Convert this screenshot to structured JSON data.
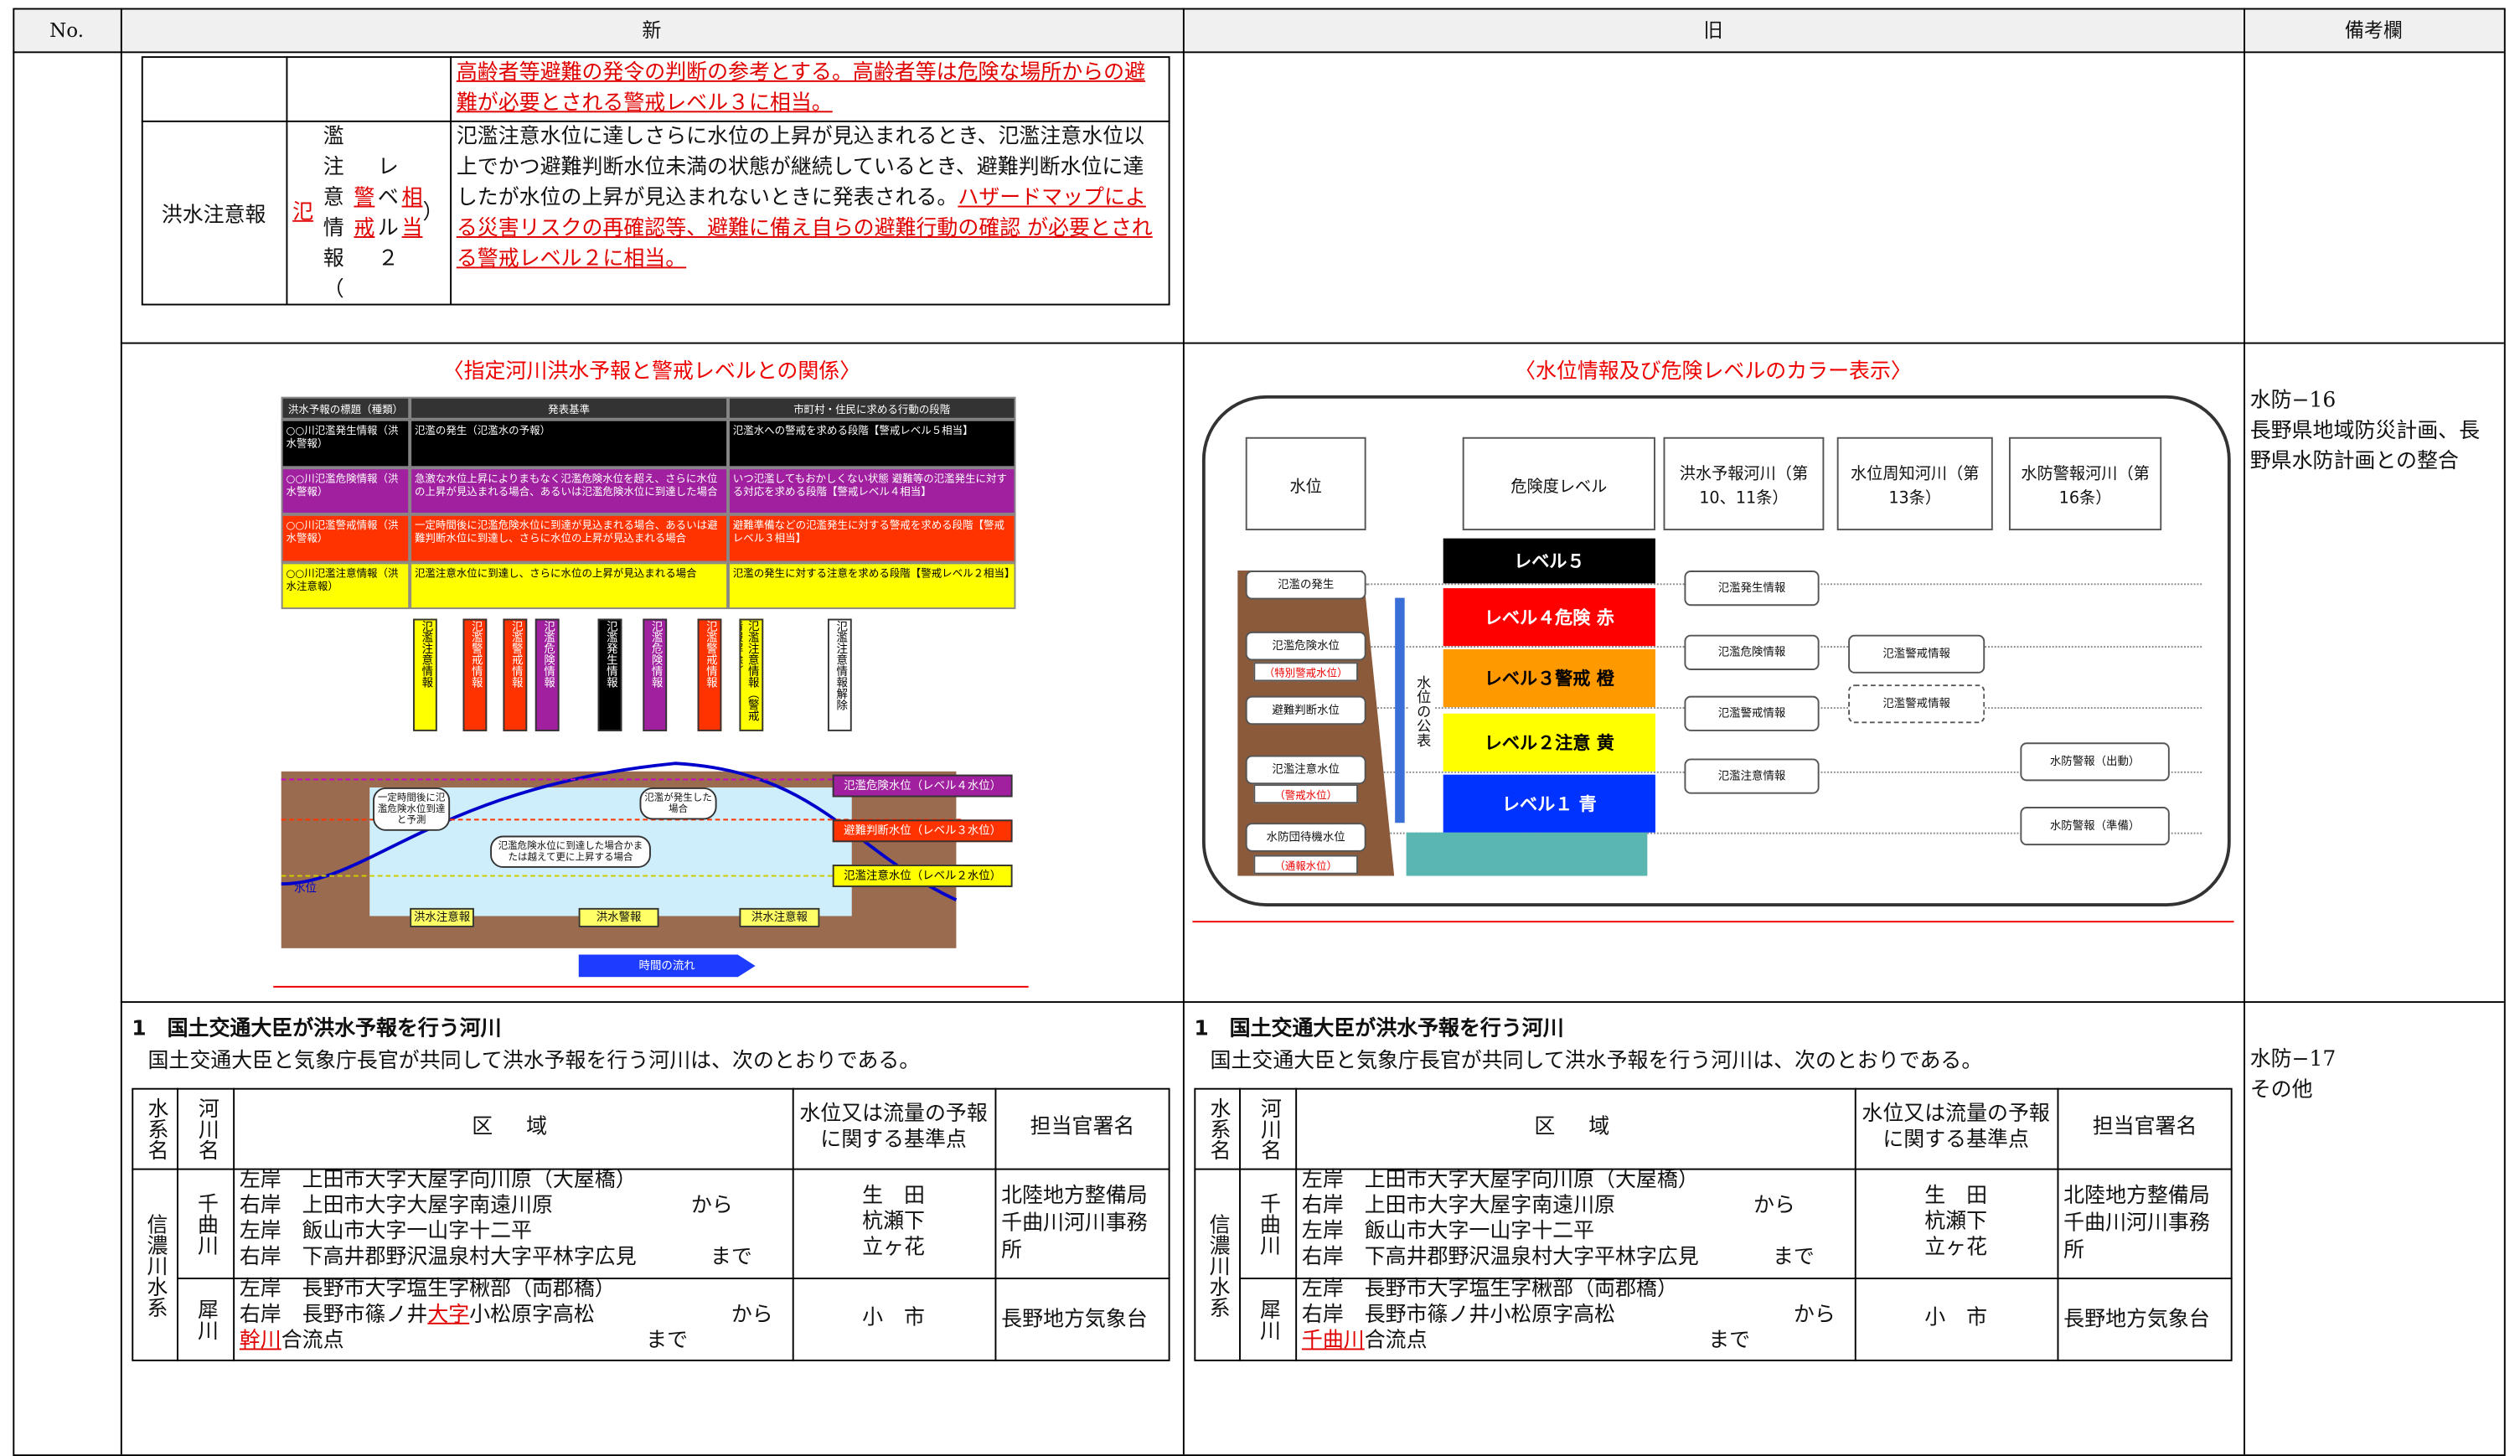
{
  "header": {
    "no": "No.",
    "new": "新",
    "old": "旧",
    "remarks": "備考欄"
  },
  "new": {
    "warning_table": [
      {
        "description": [
          {
            "text": "高齢者等避難の発令の判断の参考とする。高齢者等は危険な場所からの避難が必要とされる警戒レベル３に相当。",
            "changed": true
          }
        ]
      },
      {
        "name": "洪水注意報",
        "info": [
          {
            "text": "氾",
            "changed": true
          },
          "濫注意情報（",
          {
            "text": "警戒",
            "changed": true
          },
          "レベル２",
          {
            "text": "相当",
            "changed": true
          },
          "）"
        ],
        "description": [
          "氾濫注意水位に達しさらに水位の上昇が見込まれるとき、氾濫注意水位以上でかつ避難判断水位未満の状態が継続しているとき、避難判断水位に達したが水位の上昇が見込まれないときに発表される。",
          {
            "text": "ハザードマップによる災害リスクの再確認等、避難に備え自らの避難行動の確認 が必要とされる警戒レベル２に相当。",
            "changed": true
          }
        ]
      }
    ],
    "figure": {
      "title": "〈指定河川洪水予報と警戒レベルとの関係〉",
      "table_header": [
        "洪水予報の標題（種類）",
        "発表基準",
        "市町村・住民に求める行動の段階"
      ],
      "table_rows": [
        {
          "color": "#000000",
          "text_color": "#ffffff",
          "name": "○○川氾濫発生情報（洪水警報）",
          "criteria": "氾濫の発生（氾濫水の予報）",
          "action": "氾濫水への警戒を求める段階【警戒レベル５相当】"
        },
        {
          "color": "#a020a0",
          "text_color": "#ffffff",
          "name": "○○川氾濫危険情報（洪水警報）",
          "criteria": "急激な水位上昇によりまもなく氾濫危険水位を超え、さらに水位の上昇が見込まれる場合、あるいは氾濫危険水位に到達した場合",
          "action": "いつ氾濫してもおかしくない状態 避難等の氾濫発生に対する対応を求める段階【警戒レベル４相当】"
        },
        {
          "color": "#ff3300",
          "text_color": "#ffffff",
          "name": "○○川氾濫警戒情報（洪水警報）",
          "criteria": "一定時間後に氾濫危険水位に到達が見込まれる場合、あるいは避難判断水位に到達し、さらに水位の上昇が見込まれる場合",
          "action": "避難準備などの氾濫発生に対する警戒を求める段階【警戒レベル３相当】"
        },
        {
          "color": "#ffff00",
          "text_color": "#000000",
          "name": "○○川氾濫注意情報（洪水注意報）",
          "criteria": "氾濫注意水位に到達し、さらに水位の上昇が見込まれる場合",
          "action": "氾濫の発生に対する注意を求める段階【警戒レベル２相当】"
        }
      ],
      "arrows": [
        {
          "label": "氾濫注意情報",
          "color": "#ffff00"
        },
        {
          "label": "氾濫警戒情報",
          "color": "#ff3300"
        },
        {
          "label": "氾濫警戒情報",
          "color": "#ff3300"
        },
        {
          "label": "氾濫危険情報",
          "color": "#a020a0"
        },
        {
          "label": "氾濫発生情報",
          "color": "#000000"
        },
        {
          "label": "氾濫危険情報",
          "color": "#a020a0"
        },
        {
          "label": "氾濫警戒情報",
          "color": "#ff3300"
        },
        {
          "label": "氾濫注意情報（警戒情報解除）",
          "color": "#ffff00"
        },
        {
          "label": "氾濫注意情報解除",
          "color": "#ffffff"
        }
      ],
      "levels": [
        {
          "label": "氾濫危険水位（レベル４水位）",
          "color": "#a020a0"
        },
        {
          "label": "避難判断水位（レベル３水位）",
          "color": "#ff3300"
        },
        {
          "label": "氾濫注意水位（レベル２水位）",
          "color": "#ffff00"
        }
      ],
      "notes": [
        "一定時間後に氾濫危険水位到達と予測",
        "氾濫危険水位に到達した場合かまたは越えて更に上昇する場合",
        "氾濫が発生した場合"
      ],
      "water": "水位",
      "periods": [
        "洪水注意報",
        "洪水警報",
        "洪水注意報"
      ],
      "time": "時間の流れ"
    },
    "rivers": {
      "heading": "1　国土交通大臣が洪水予報を行う河川",
      "intro": "国土交通大臣と気象庁長官が共同して洪水予報を行う河川は、次のとおりである。",
      "columns": [
        "水系名",
        "河川名",
        "区　域",
        "水位又は流量の予報に関する基準点",
        "担当官署名"
      ],
      "system": "信濃川水系",
      "rows": [
        {
          "river": "千曲川",
          "zone": [
            [
              "左岸　上田市大字大屋字向川原（大屋橋）"
            ],
            [
              "右岸　上田市大字大屋字南遠川原"
            ],
            [
              "左岸　飯山市大字一山字十二平"
            ],
            [
              "右岸　下高井郡野沢温泉村大字平林字広見"
            ]
          ],
          "from": "から",
          "to": "まで",
          "points": [
            "生　田",
            "杭瀬下",
            "立ヶ花"
          ],
          "office": "北陸地方整備局千曲川河川事務所"
        },
        {
          "river": "犀川",
          "zone": [
            [
              "左岸　長野市大字塩生字楸部（両郡橋）"
            ],
            [
              "右岸　長野市篠ノ井",
              {
                "text": "大字",
                "changed": true
              },
              "小松原字高松"
            ],
            [
              {
                "text": "幹川",
                "changed": true
              },
              "合流点"
            ]
          ],
          "from": "から",
          "to": "まで",
          "points": [
            "小　市"
          ],
          "office": "長野地方気象台"
        }
      ]
    }
  },
  "old": {
    "figure": {
      "title": "〈水位情報及び危険レベルのカラー表示〉",
      "columns": [
        "水位",
        "危険度レベル",
        "洪水予報河川（第10、11条）",
        "水位周知河川（第13条）",
        "水防警報河川（第16条）"
      ],
      "levels": [
        {
          "label": "レベル５",
          "color": "#000000",
          "text_color": "#ffffff"
        },
        {
          "label": "レベル４危険 赤",
          "color": "#ff0000",
          "text_color": "#ffffff"
        },
        {
          "label": "レベル３警戒 橙",
          "color": "#ff9900",
          "text_color": "#000000"
        },
        {
          "label": "レベル２注意 黄",
          "color": "#ffff00",
          "text_color": "#000000"
        },
        {
          "label": "レベル１ 青",
          "color": "#0033ff",
          "text_color": "#ffffff"
        }
      ],
      "stages": [
        "氾濫の発生",
        "氾濫危険水位",
        "避難判断水位",
        "氾濫注意水位",
        "水防団待機水位"
      ],
      "stage_notes": [
        "（特別警戒水位）",
        "（警戒水位）",
        "（通報水位）"
      ],
      "publish": "水位の公表",
      "forecast": [
        "氾濫発生情報",
        "氾濫危険情報",
        "氾濫警戒情報",
        "氾濫注意情報"
      ],
      "notice": [
        "氾濫警戒情報",
        "氾濫警戒情報"
      ],
      "flood_fighting": [
        "水防警報（出動）",
        "水防警報（準備）"
      ]
    },
    "rivers": {
      "heading": "1　国土交通大臣が洪水予報を行う河川",
      "intro": "国土交通大臣と気象庁長官が共同して洪水予報を行う河川は、次のとおりである。",
      "columns": [
        "水系名",
        "河川名",
        "区　域",
        "水位又は流量の予報に関する基準点",
        "担当官署名"
      ],
      "system": "信濃川水系",
      "rows": [
        {
          "river": "千曲川",
          "zone": [
            [
              "左岸　上田市大字大屋字向川原（大屋橋）"
            ],
            [
              "右岸　上田市大字大屋字南遠川原"
            ],
            [
              "左岸　飯山市大字一山字十二平"
            ],
            [
              "右岸　下高井郡野沢温泉村大字平林字広見"
            ]
          ],
          "from": "から",
          "to": "まで",
          "points": [
            "生　田",
            "杭瀬下",
            "立ヶ花"
          ],
          "office": "北陸地方整備局千曲川河川事務所"
        },
        {
          "river": "犀川",
          "zone": [
            [
              "左岸　長野市大字塩生字楸部（両郡橋）"
            ],
            [
              "右岸　長野市篠ノ井小松原字高松"
            ],
            [
              {
                "text": "千曲川",
                "changed": true
              },
              "合流点"
            ]
          ],
          "from": "から",
          "to": "まで",
          "points": [
            "小　市"
          ],
          "office": "長野地方気象台"
        }
      ]
    }
  },
  "remarks": [
    [
      "水防−16",
      "長野県地域防災計画、長野県水防計画との整合"
    ],
    [
      "水防−17",
      "その他"
    ]
  ]
}
